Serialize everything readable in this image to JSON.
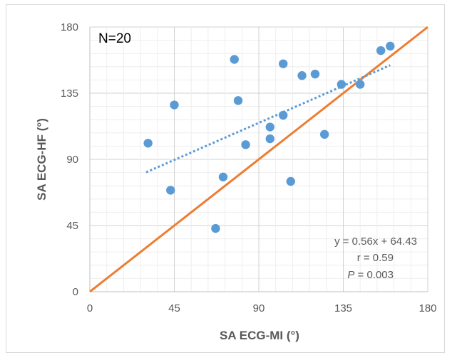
{
  "chart_data": {
    "type": "scatter",
    "annotation_n": "N=20",
    "xlabel": "SA ECG-MI (°)",
    "ylabel": "SA ECG-HF (°)",
    "xlim": [
      0,
      180
    ],
    "ylim": [
      0,
      180
    ],
    "xticks": [
      "0",
      "45",
      "90",
      "135",
      "180"
    ],
    "yticks": [
      "0",
      "45",
      "90",
      "135",
      "180"
    ],
    "grid": true,
    "points": [
      {
        "x": 31,
        "y": 101
      },
      {
        "x": 43,
        "y": 69
      },
      {
        "x": 45,
        "y": 127
      },
      {
        "x": 67,
        "y": 43
      },
      {
        "x": 71,
        "y": 78
      },
      {
        "x": 77,
        "y": 158
      },
      {
        "x": 79,
        "y": 130
      },
      {
        "x": 83,
        "y": 100
      },
      {
        "x": 96,
        "y": 112
      },
      {
        "x": 96,
        "y": 104
      },
      {
        "x": 103,
        "y": 120
      },
      {
        "x": 103,
        "y": 155
      },
      {
        "x": 107,
        "y": 75
      },
      {
        "x": 113,
        "y": 147
      },
      {
        "x": 120,
        "y": 148
      },
      {
        "x": 125,
        "y": 107
      },
      {
        "x": 134,
        "y": 141
      },
      {
        "x": 144,
        "y": 141
      },
      {
        "x": 155,
        "y": 164
      },
      {
        "x": 160,
        "y": 167
      }
    ],
    "identity_line": {
      "x": [
        0,
        180
      ],
      "y": [
        0,
        180
      ],
      "color": "#ed7d31"
    },
    "trendline": {
      "slope": 0.56,
      "intercept": 64.43,
      "x_range": [
        30,
        160
      ],
      "color": "#5b9bd5"
    },
    "stats": {
      "equation": "y = 0.56x + 64.43",
      "r": "r = 0.59",
      "p_label": "P",
      "p_value": " = 0.003"
    },
    "colors": {
      "points": "#5b9bd5",
      "identity": "#ed7d31",
      "grid": "#d9d9d9"
    }
  }
}
